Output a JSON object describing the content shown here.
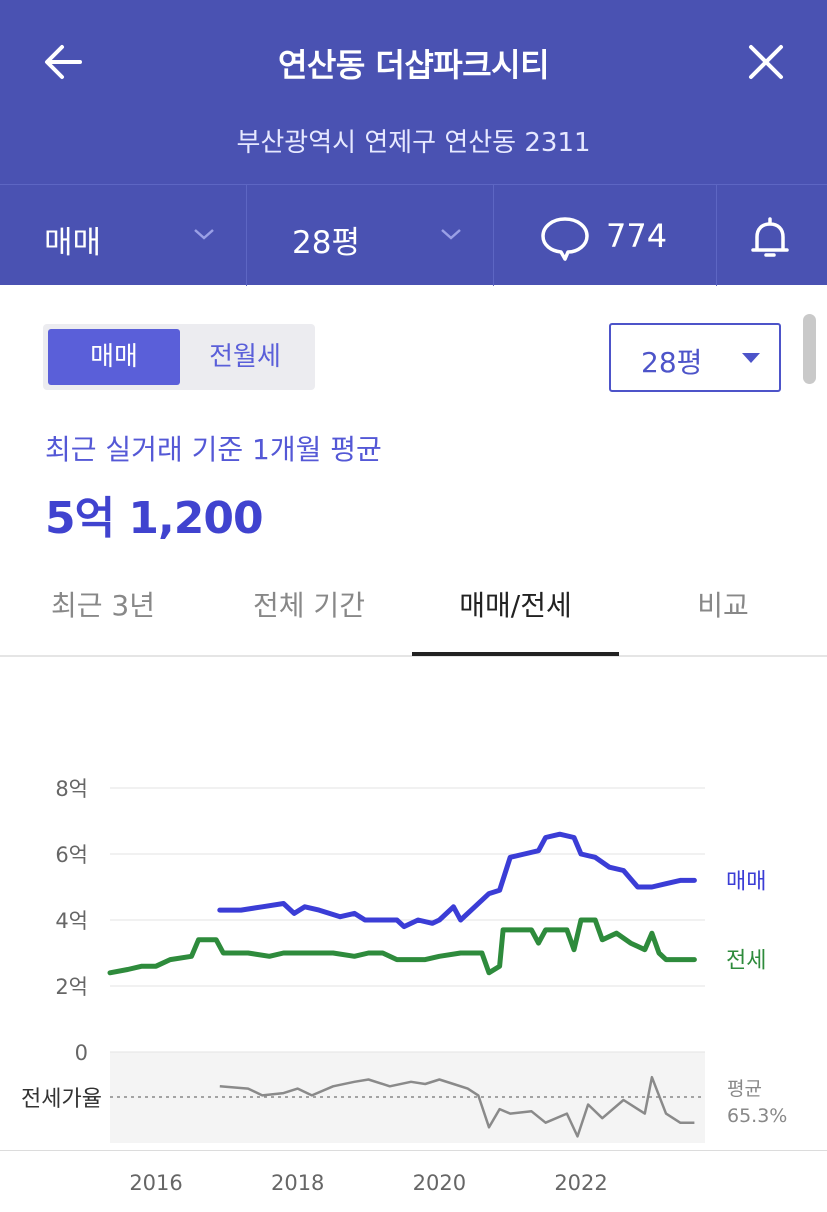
{
  "header": {
    "title": "연산동 더샵파크시티",
    "address": "부산광역시 연제구 연산동 2311",
    "back_icon": "arrow-left-icon",
    "close_icon": "close-icon",
    "color": "#4a52b2"
  },
  "subnav": {
    "type_label": "매매",
    "size_label": "28평",
    "comment_count": "774",
    "comment_icon": "speech-bubble-icon",
    "bell_icon": "bell-icon"
  },
  "toggle": {
    "options": [
      "매매",
      "전월세"
    ],
    "selected": "매매"
  },
  "size_select": {
    "value": "28평"
  },
  "summary": {
    "label": "최근 실거래 기준 1개월 평균",
    "price": "5억 1,200"
  },
  "tabs": {
    "items": [
      "최근 3년",
      "전체 기간",
      "매매/전세",
      "비교"
    ],
    "active": "매매/전세"
  },
  "chart_data": {
    "type": "line",
    "y_ticks": [
      "8억",
      "6억",
      "4억",
      "2억",
      "0"
    ],
    "ylim": [
      0,
      8
    ],
    "x_ticks": [
      "2016",
      "2018",
      "2020",
      "2022"
    ],
    "xlim": [
      2015.35,
      2023.75
    ],
    "ratio_label": "전세가율",
    "ratio_avg_label": "평균",
    "ratio_avg_value": "65.3%",
    "ratio_avg": 65.3,
    "colors": {
      "sale": "#3b3dd6",
      "jeonse": "#2e8b3c",
      "ratio": "#8a8a8a"
    },
    "series": [
      {
        "name": "매매",
        "points": [
          [
            2016.9,
            4.3
          ],
          [
            2017.2,
            4.3
          ],
          [
            2017.5,
            4.4
          ],
          [
            2017.8,
            4.5
          ],
          [
            2017.95,
            4.2
          ],
          [
            2018.1,
            4.4
          ],
          [
            2018.3,
            4.3
          ],
          [
            2018.6,
            4.1
          ],
          [
            2018.8,
            4.2
          ],
          [
            2018.95,
            4.0
          ],
          [
            2019.2,
            4.0
          ],
          [
            2019.4,
            4.0
          ],
          [
            2019.5,
            3.8
          ],
          [
            2019.7,
            4.0
          ],
          [
            2019.9,
            3.9
          ],
          [
            2020.0,
            4.0
          ],
          [
            2020.2,
            4.4
          ],
          [
            2020.3,
            4.0
          ],
          [
            2020.5,
            4.4
          ],
          [
            2020.7,
            4.8
          ],
          [
            2020.85,
            4.9
          ],
          [
            2021.0,
            5.9
          ],
          [
            2021.2,
            6.0
          ],
          [
            2021.4,
            6.1
          ],
          [
            2021.5,
            6.5
          ],
          [
            2021.7,
            6.6
          ],
          [
            2021.9,
            6.5
          ],
          [
            2022.0,
            6.0
          ],
          [
            2022.2,
            5.9
          ],
          [
            2022.4,
            5.6
          ],
          [
            2022.6,
            5.5
          ],
          [
            2022.8,
            5.0
          ],
          [
            2023.0,
            5.0
          ],
          [
            2023.2,
            5.1
          ],
          [
            2023.4,
            5.2
          ],
          [
            2023.6,
            5.2
          ]
        ]
      },
      {
        "name": "전세",
        "points": [
          [
            2015.35,
            2.4
          ],
          [
            2015.6,
            2.5
          ],
          [
            2015.8,
            2.6
          ],
          [
            2016.0,
            2.6
          ],
          [
            2016.2,
            2.8
          ],
          [
            2016.5,
            2.9
          ],
          [
            2016.6,
            3.4
          ],
          [
            2016.85,
            3.4
          ],
          [
            2016.95,
            3.0
          ],
          [
            2017.3,
            3.0
          ],
          [
            2017.6,
            2.9
          ],
          [
            2017.8,
            3.0
          ],
          [
            2018.2,
            3.0
          ],
          [
            2018.5,
            3.0
          ],
          [
            2018.8,
            2.9
          ],
          [
            2019.0,
            3.0
          ],
          [
            2019.2,
            3.0
          ],
          [
            2019.4,
            2.8
          ],
          [
            2019.8,
            2.8
          ],
          [
            2020.0,
            2.9
          ],
          [
            2020.3,
            3.0
          ],
          [
            2020.6,
            3.0
          ],
          [
            2020.7,
            2.4
          ],
          [
            2020.85,
            2.6
          ],
          [
            2020.9,
            3.7
          ],
          [
            2021.3,
            3.7
          ],
          [
            2021.4,
            3.3
          ],
          [
            2021.5,
            3.7
          ],
          [
            2021.8,
            3.7
          ],
          [
            2021.9,
            3.1
          ],
          [
            2022.0,
            4.0
          ],
          [
            2022.2,
            4.0
          ],
          [
            2022.3,
            3.4
          ],
          [
            2022.5,
            3.6
          ],
          [
            2022.7,
            3.3
          ],
          [
            2022.9,
            3.1
          ],
          [
            2023.0,
            3.6
          ],
          [
            2023.1,
            3.0
          ],
          [
            2023.2,
            2.8
          ],
          [
            2023.6,
            2.8
          ]
        ]
      },
      {
        "name": "전세가율",
        "points": [
          [
            2016.9,
            70
          ],
          [
            2017.3,
            69
          ],
          [
            2017.5,
            66
          ],
          [
            2017.8,
            67
          ],
          [
            2018.0,
            69
          ],
          [
            2018.2,
            66
          ],
          [
            2018.5,
            70
          ],
          [
            2018.8,
            72
          ],
          [
            2019.0,
            73
          ],
          [
            2019.3,
            70
          ],
          [
            2019.6,
            72
          ],
          [
            2019.8,
            71
          ],
          [
            2020.0,
            73
          ],
          [
            2020.2,
            71
          ],
          [
            2020.4,
            69
          ],
          [
            2020.55,
            66
          ],
          [
            2020.7,
            52
          ],
          [
            2020.85,
            60
          ],
          [
            2021.0,
            58
          ],
          [
            2021.3,
            59
          ],
          [
            2021.5,
            54
          ],
          [
            2021.8,
            58
          ],
          [
            2021.95,
            48
          ],
          [
            2022.1,
            62
          ],
          [
            2022.3,
            56
          ],
          [
            2022.6,
            64
          ],
          [
            2022.9,
            58
          ],
          [
            2023.0,
            74
          ],
          [
            2023.2,
            58
          ],
          [
            2023.4,
            54
          ],
          [
            2023.6,
            54
          ]
        ]
      }
    ]
  }
}
